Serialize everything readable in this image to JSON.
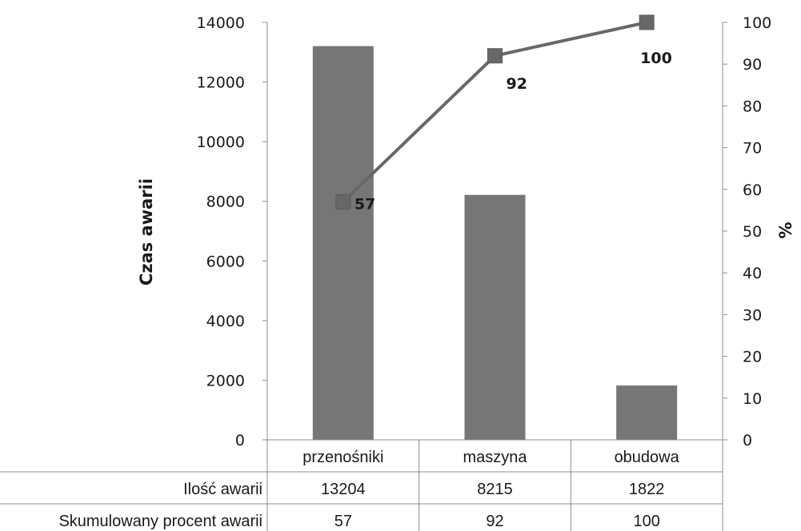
{
  "chart_data": {
    "type": "bar",
    "categories": [
      "przenośniki",
      "maszyna",
      "obudowa"
    ],
    "series": [
      {
        "type": "bar",
        "axis": "left",
        "values": [
          13204,
          8215,
          1822
        ],
        "color": "#767676"
      },
      {
        "type": "line",
        "axis": "right",
        "values": [
          57,
          92,
          100
        ],
        "color": "#686868",
        "marker": "square"
      }
    ],
    "ylabel": "Czas awarii",
    "ylabel_right": "%",
    "ylim": [
      0,
      14000
    ],
    "yticks": [
      "0",
      "2000",
      "4000",
      "6000",
      "8000",
      "10000",
      "12000",
      "14000"
    ],
    "ylim_right": [
      0,
      100
    ],
    "yticks_right": [
      "0",
      "10",
      "20",
      "30",
      "40",
      "50",
      "60",
      "70",
      "80",
      "90",
      "100"
    ],
    "data_labels": [
      "57",
      "92",
      "100"
    ],
    "grid": false,
    "data_table": {
      "rows": [
        {
          "header": "Ilość awarii",
          "values": [
            "13204",
            "8215",
            "1822"
          ]
        },
        {
          "header": "Skumulowany procent awarii",
          "values": [
            "57",
            "92",
            "100"
          ]
        }
      ]
    }
  }
}
